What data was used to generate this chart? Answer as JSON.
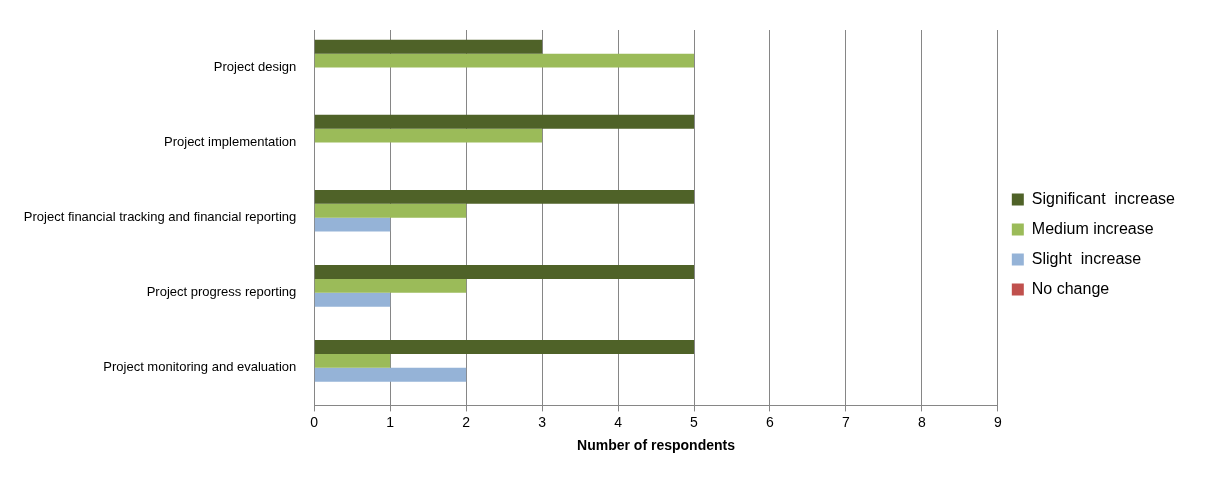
{
  "chart_data": {
    "type": "bar",
    "orientation": "horizontal",
    "xlabel": "Number of respondents",
    "categories": [
      "Project design",
      "Project implementation",
      "Project financial tracking and financial reporting",
      "Project progress reporting",
      "Project monitoring and evaluation"
    ],
    "series": [
      {
        "name": "Significant  increase",
        "color": "#4f6228",
        "values": [
          3,
          5,
          5,
          5,
          5
        ]
      },
      {
        "name": "Medium increase",
        "color": "#9bbb59",
        "values": [
          5,
          3,
          2,
          2,
          1
        ]
      },
      {
        "name": "Slight  increase",
        "color": "#95b3d7",
        "values": [
          0,
          0,
          1,
          1,
          2
        ]
      },
      {
        "name": "No change",
        "color": "#c0504d",
        "values": [
          0,
          0,
          0,
          0,
          0
        ]
      }
    ],
    "xlim": [
      0,
      9
    ],
    "xticks": [
      0,
      1,
      2,
      3,
      4,
      5,
      6,
      7,
      8,
      9
    ],
    "grid": "x",
    "legend": "right"
  }
}
